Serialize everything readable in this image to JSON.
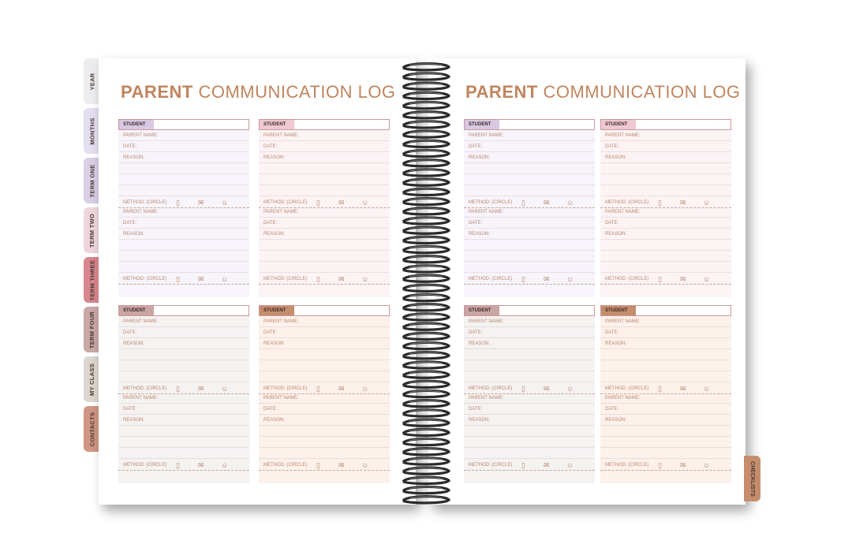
{
  "title_bold": "PARENT",
  "title_light": "COMMUNICATION LOG",
  "tabs_left": [
    {
      "label": "YEAR",
      "color": "#ededf0"
    },
    {
      "label": "MONTHS",
      "color": "#e4def0"
    },
    {
      "label": "TERM ONE",
      "color": "#d9cfe6"
    },
    {
      "label": "TERM TWO",
      "color": "#efd6dc"
    },
    {
      "label": "TERM THREE",
      "color": "#d9868f"
    },
    {
      "label": "TERM FOUR",
      "color": "#c9a8a6"
    },
    {
      "label": "MY CLASS",
      "color": "#dcd6cf"
    },
    {
      "label": "CONTACTS",
      "color": "#cf9784"
    }
  ],
  "tab_right": {
    "label": "CHECKLISTS",
    "color": "#c58d6c"
  },
  "card": {
    "student_label": "STUDENT",
    "parent_name": "PARENT NAME:",
    "date": "DATE:",
    "reason": "REASON:",
    "method": "METHOD:",
    "circle": "(CIRCLE)"
  },
  "card_colors": [
    {
      "label_bg": "#d7c8e4",
      "body_bg": "#f7f4fb"
    },
    {
      "label_bg": "#efc8d2",
      "body_bg": "#fcf3f5"
    },
    {
      "label_bg": "#c9a5a3",
      "body_bg": "#f5f2f2"
    },
    {
      "label_bg": "#c58d6c",
      "body_bg": "#fdf1ec"
    }
  ]
}
